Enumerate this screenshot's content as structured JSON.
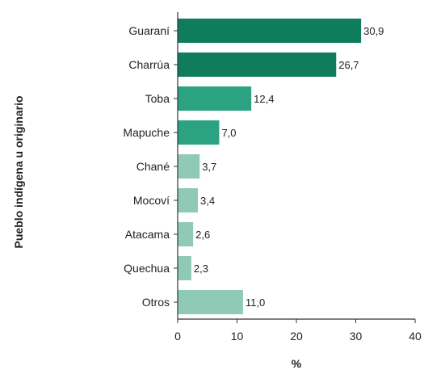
{
  "chart_data": {
    "type": "bar",
    "orientation": "horizontal",
    "categories": [
      "Guaraní",
      "Charrúa",
      "Toba",
      "Mapuche",
      "Chané",
      "Mocoví",
      "Atacama",
      "Quechua",
      "Otros"
    ],
    "values": [
      30.9,
      26.7,
      12.4,
      7.0,
      3.7,
      3.4,
      2.6,
      2.3,
      11.0
    ],
    "value_labels": [
      "30,9",
      "26,7",
      "12,4",
      "7,0",
      "3,7",
      "3,4",
      "2,6",
      "2,3",
      "11,0"
    ],
    "bar_colors": [
      "#0f7d5c",
      "#0f7d5c",
      "#2ba383",
      "#2ba383",
      "#8ecab6",
      "#8ecab6",
      "#8ecab6",
      "#8ecab6",
      "#8ecab6"
    ],
    "title": "",
    "xlabel": "%",
    "ylabel": "Pueblo indígena u originario",
    "xlim": [
      0,
      40
    ],
    "xticks": [
      0,
      10,
      20,
      30,
      40
    ],
    "grid": false,
    "legend": false
  }
}
